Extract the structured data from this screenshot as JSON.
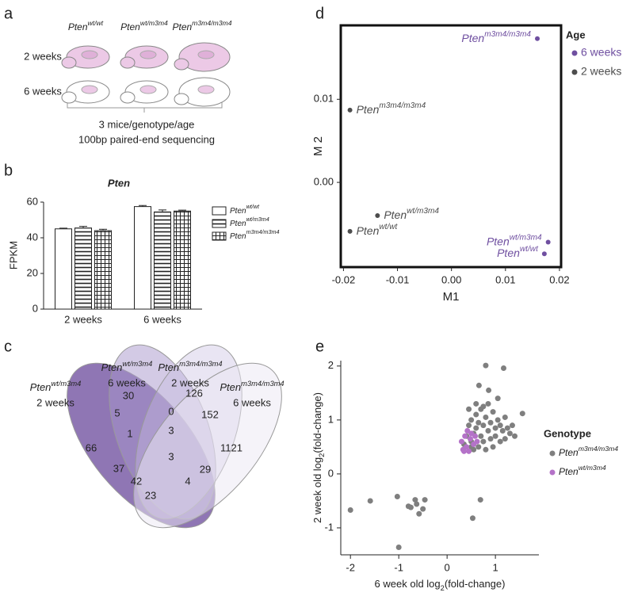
{
  "panel_labels": [
    "a",
    "b",
    "c",
    "d",
    "e"
  ],
  "schematic": {
    "genotypes": [
      {
        "base": "Pten",
        "sup": "wt/wt"
      },
      {
        "base": "Pten",
        "sup": "wt/m3m4"
      },
      {
        "base": "Pten",
        "sup": "m3m4/m3m4"
      }
    ],
    "ages": [
      "2 weeks",
      "6 weeks"
    ],
    "caption": [
      "3 mice/genotype/age",
      "100bp paired-end sequencing"
    ]
  },
  "chart_data": [
    {
      "type": "bar",
      "title": "Pten",
      "ylabel": "FPKM",
      "categories": [
        "2 weeks",
        "6 weeks"
      ],
      "ylim": [
        0,
        60
      ],
      "yticks": [
        0,
        20,
        40,
        60
      ],
      "series": [
        {
          "name": "Pten",
          "name_sup": "wt/wt",
          "color": "#ffffff",
          "hatch": "none",
          "values": [
            45,
            57.5
          ],
          "errors": [
            0.4,
            0.6
          ]
        },
        {
          "name": "Pten",
          "name_sup": "wt/m3m4",
          "color": "#ffffff",
          "hatch": "horizontal",
          "values": [
            45.5,
            54.5
          ],
          "errors": [
            0.9,
            1.1
          ]
        },
        {
          "name": "Pten",
          "name_sup": "m3m4/m3m4",
          "color": "#ffffff",
          "hatch": "grid",
          "values": [
            44,
            55
          ],
          "errors": [
            0.8,
            0.5
          ]
        }
      ]
    },
    {
      "type": "scatter",
      "xlabel": "M1",
      "ylabel": "M 2",
      "xlim": [
        -0.0205,
        0.0203
      ],
      "ylim": [
        -0.0102,
        0.0189
      ],
      "xticks": [
        {
          "value": -0.02,
          "label": "-0.02"
        },
        {
          "value": -0.01,
          "label": "-0.01"
        },
        {
          "value": 0,
          "label": "0.00"
        },
        0.01,
        0.02
      ],
      "yticks": [
        {
          "value": 0,
          "label": "0.00"
        },
        0.01
      ],
      "legend_title": "Age",
      "legend": "right",
      "series": [
        {
          "name": "6 weeks",
          "color": "#6f4fa0",
          "x": [
            0.0159,
            0.0179,
            0.0172
          ],
          "values": [
            0.0173,
            -0.0072,
            -0.0086
          ],
          "labels": [
            {
              "base": "Pten",
              "sup": "m3m4/m3m4"
            },
            {
              "base": "Pten",
              "sup": "wt/m3m4"
            },
            {
              "base": "Pten",
              "sup": "wt/wt"
            }
          ]
        },
        {
          "name": "2 weeks",
          "color": "#4d4d4d",
          "x": [
            -0.0188,
            -0.0137,
            -0.0188
          ],
          "values": [
            0.0087,
            -0.004,
            -0.0059
          ],
          "labels": [
            {
              "base": "Pten",
              "sup": "m3m4/m3m4"
            },
            {
              "base": "Pten",
              "sup": "wt/m3m4"
            },
            {
              "base": "Pten",
              "sup": "wt/wt"
            }
          ]
        }
      ]
    },
    {
      "type": "scatter",
      "xlabel": {
        "text": "6 week old log",
        "sub": "2",
        "rest": "(fold-change)"
      },
      "ylabel": {
        "text": "2 week old log",
        "sub": "2",
        "rest": "(fold-change)"
      },
      "xlim": [
        -2.2,
        1.9
      ],
      "ylim": [
        -1.5,
        2.1
      ],
      "xticks": [
        -2,
        -1,
        0,
        1
      ],
      "yticks": [
        -1,
        0,
        1,
        2
      ],
      "legend_title": "Genotype",
      "legend": "right",
      "series": [
        {
          "name": "Pten",
          "name_sup": "m3m4/m3m4",
          "color": "#7f7f7f",
          "x": [
            0.35,
            0.4,
            0.45,
            0.5,
            0.5,
            0.55,
            0.6,
            0.6,
            0.65,
            0.65,
            0.7,
            0.7,
            0.75,
            0.75,
            0.8,
            0.8,
            0.85,
            0.85,
            0.9,
            0.9,
            0.95,
            1.0,
            1.0,
            1.05,
            1.1,
            1.1,
            1.15,
            1.2,
            1.2,
            1.25,
            1.3,
            1.35,
            1.4,
            0.55,
            0.6,
            0.95,
            0.45,
            1.05,
            0.75,
            0.5,
            -2.0,
            -1.59,
            -1.03,
            -0.8,
            -0.75,
            -0.66,
            -0.63,
            -0.58,
            -0.46,
            -1.0,
            0.53,
            0.69,
            0.8,
            1.17,
            1.56,
            0.66,
            0.86,
            -0.5
          ],
          "values": [
            0.55,
            0.7,
            0.9,
            0.6,
            1.0,
            0.75,
            0.85,
            1.1,
            0.5,
            0.95,
            0.7,
            1.2,
            0.6,
            0.9,
            1.05,
            0.45,
            0.8,
            1.3,
            0.65,
            0.95,
            1.15,
            0.7,
            0.85,
            1.0,
            0.6,
            0.9,
            0.8,
            0.65,
            1.05,
            0.85,
            0.75,
            0.9,
            0.7,
            0.45,
            1.3,
            0.5,
            1.2,
            1.4,
            1.25,
            0.5,
            -0.67,
            -0.5,
            -0.42,
            -0.6,
            -0.62,
            -0.48,
            -0.56,
            -0.74,
            -0.48,
            -1.36,
            -0.82,
            -0.48,
            2.01,
            1.96,
            1.12,
            1.64,
            1.55,
            -0.65
          ]
        },
        {
          "name": "Pten",
          "name_sup": "wt/m3m4",
          "color": "#b472c8",
          "x": [
            0.3,
            0.33,
            0.37,
            0.4,
            0.42,
            0.45,
            0.48,
            0.5,
            0.55,
            0.58,
            0.62,
            0.35
          ],
          "values": [
            0.6,
            0.45,
            0.7,
            0.5,
            0.8,
            0.42,
            0.65,
            0.75,
            0.55,
            0.7,
            0.6,
            0.42
          ]
        }
      ]
    }
  ],
  "venn": {
    "sets": [
      {
        "base": "Pten",
        "sup": "wt/m3m4",
        "age": "2 weeks"
      },
      {
        "base": "Pten",
        "sup": "wt/m3m4",
        "age": "6 weeks"
      },
      {
        "base": "Pten",
        "sup": "m3m4/m3m4",
        "age": "2 weeks"
      },
      {
        "base": "Pten",
        "sup": "m3m4/m3m4",
        "age": "6 weeks"
      }
    ],
    "regions": [
      66,
      30,
      126,
      1121,
      5,
      0,
      152,
      1,
      3,
      37,
      3,
      29,
      42,
      4,
      23
    ]
  }
}
